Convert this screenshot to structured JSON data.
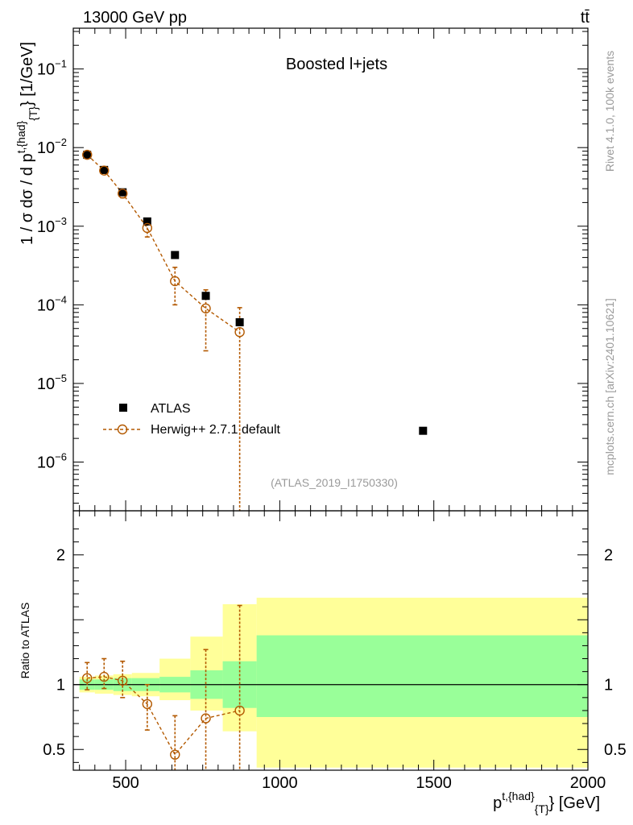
{
  "header": {
    "left": "13000 GeV pp",
    "right": "tt̄"
  },
  "side": {
    "rivet": "Rivet 4.1.0,  100k events",
    "mcplots": "mcplots.cern.ch [arXiv:2401.10621]"
  },
  "chart_data": [
    {
      "type": "scatter",
      "panel": "main",
      "title": "Boosted l+jets",
      "watermark": "(ATLAS_2019_I1750330)",
      "yscale": "log",
      "ylabel": "1 / σ dσ / d p^{t,{had}}_{T} [1/GeV]",
      "ylim": [
        2.4e-07,
        0.33
      ],
      "xlim": [
        330,
        2000
      ],
      "y_ticks": [
        {
          "v": 1e-06,
          "exp": "−6"
        },
        {
          "v": 1e-05,
          "exp": "−5"
        },
        {
          "v": 0.0001,
          "exp": "−4"
        },
        {
          "v": 0.001,
          "exp": "−3"
        },
        {
          "v": 0.01,
          "exp": "−2"
        },
        {
          "v": 0.1,
          "exp": "−1"
        }
      ],
      "legend": {
        "position": "bottom-left",
        "entries": [
          "ATLAS",
          "Herwig++ 2.7.1 default"
        ]
      },
      "series": [
        {
          "name": "ATLAS",
          "marker": "square",
          "x": [
            375,
            430,
            490,
            570,
            660,
            760,
            870,
            1465
          ],
          "y": [
            0.0081,
            0.0052,
            0.0027,
            0.00115,
            0.00043,
            0.00013,
            6e-05,
            2.5e-06
          ]
        },
        {
          "name": "Herwig++ 2.7.1 default",
          "marker": "open-circle",
          "line": "dashed",
          "x": [
            375,
            430,
            490,
            570,
            660,
            760,
            870
          ],
          "y": [
            0.0081,
            0.0051,
            0.0026,
            0.00095,
            0.0002,
            9e-05,
            4.5e-05
          ],
          "y_err_up": [
            0.0086,
            0.0055,
            0.0029,
            0.00108,
            0.0003,
            0.000155,
            9.2e-05
          ],
          "y_err_down": [
            0.0076,
            0.0047,
            0.0023,
            0.00073,
            0.0001,
            2.6e-05,
            2.4e-07
          ]
        }
      ]
    },
    {
      "type": "scatter",
      "panel": "ratio",
      "ylabel": "Ratio to ATLAS",
      "xlabel": "p^{t,{had}}_{T} [GeV]",
      "ylim": [
        0.34,
        2.34
      ],
      "xlim": [
        330,
        2000
      ],
      "y_ticks": [
        0.5,
        1,
        2
      ],
      "x_ticks": [
        500,
        1000,
        1500,
        2000
      ],
      "reference": 1,
      "bands": [
        {
          "x0": 350,
          "x1": 400,
          "inner": [
            0.96,
            1.04
          ],
          "outer": [
            0.94,
            1.06
          ]
        },
        {
          "x0": 400,
          "x1": 460,
          "inner": [
            0.96,
            1.04
          ],
          "outer": [
            0.93,
            1.07
          ]
        },
        {
          "x0": 460,
          "x1": 520,
          "inner": [
            0.95,
            1.05
          ],
          "outer": [
            0.92,
            1.08
          ]
        },
        {
          "x0": 520,
          "x1": 610,
          "inner": [
            0.95,
            1.05
          ],
          "outer": [
            0.91,
            1.09
          ]
        },
        {
          "x0": 610,
          "x1": 710,
          "inner": [
            0.94,
            1.06
          ],
          "outer": [
            0.88,
            1.2
          ]
        },
        {
          "x0": 710,
          "x1": 815,
          "inner": [
            0.89,
            1.11
          ],
          "outer": [
            0.8,
            1.37
          ]
        },
        {
          "x0": 815,
          "x1": 925,
          "inner": [
            0.82,
            1.18
          ],
          "outer": [
            0.64,
            1.62
          ]
        },
        {
          "x0": 925,
          "x1": 2000,
          "inner": [
            0.75,
            1.38
          ],
          "outer": [
            0.36,
            1.67
          ]
        }
      ],
      "series": [
        {
          "name": "Herwig++ 2.7.1 default",
          "x": [
            375,
            430,
            490,
            570,
            660,
            760,
            870
          ],
          "y": [
            1.05,
            1.06,
            1.03,
            0.85,
            0.46,
            0.74,
            0.8
          ],
          "y_err_up": [
            1.17,
            1.2,
            1.18,
            1.0,
            0.76,
            1.27,
            1.61
          ],
          "y_err_down": [
            0.96,
            0.97,
            0.9,
            0.65,
            0.34,
            0.34,
            0.34
          ]
        }
      ]
    }
  ]
}
